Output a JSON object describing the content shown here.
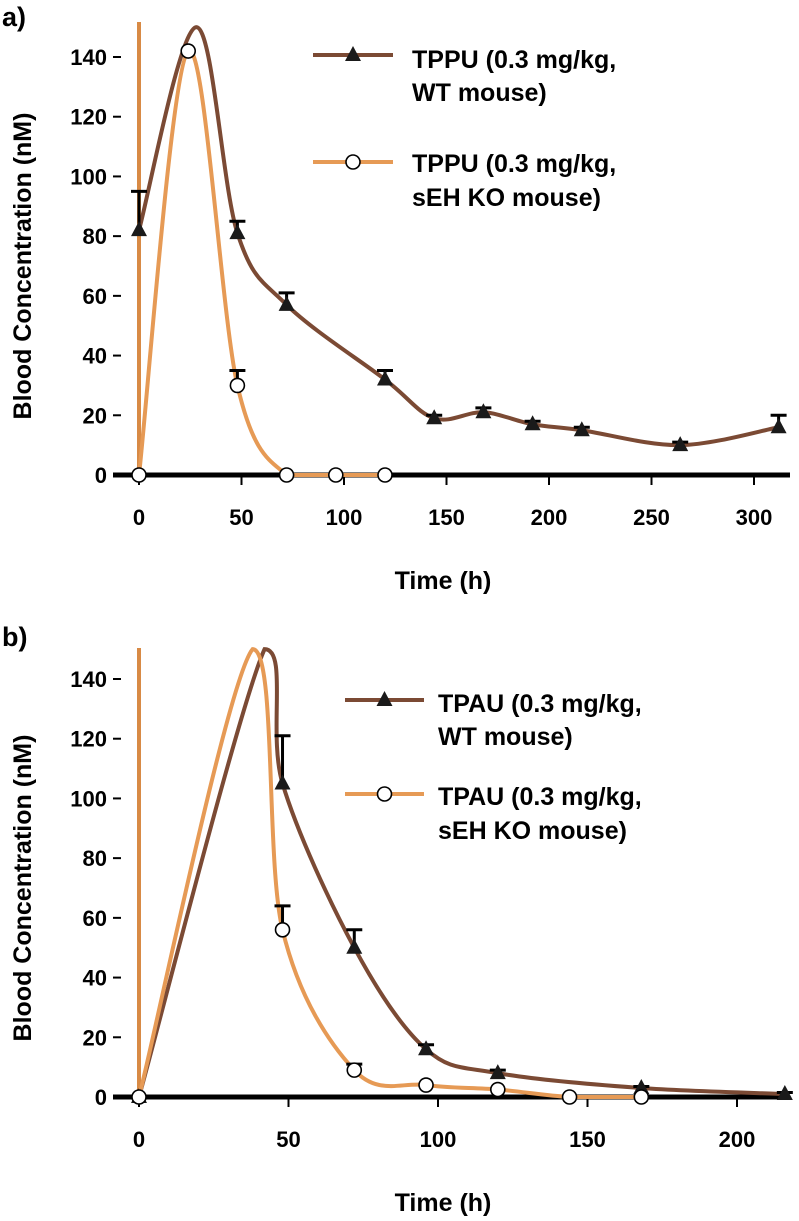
{
  "colors": {
    "wt": "#7b4a34",
    "ko": "#e69a55",
    "axis": "#000000",
    "zero": "#d88a45"
  },
  "chart_data": [
    {
      "panel_label": "a)",
      "type": "line",
      "xlabel": "Time (h)",
      "ylabel": "Blood Concentration (nM)",
      "xlim": [
        -3,
        318
      ],
      "ylim": [
        0,
        150
      ],
      "xticks": [
        0,
        50,
        100,
        150,
        200,
        250,
        300
      ],
      "yticks": [
        0,
        20,
        40,
        60,
        80,
        100,
        120,
        140
      ],
      "grid": false,
      "legend_position": "top-right",
      "series": [
        {
          "name": "TPPU (0.3 mg/kg,",
          "name2": "WT mouse)",
          "marker": "triangle",
          "x": [
            0,
            28,
            48,
            72,
            120,
            144,
            168,
            192,
            216,
            264,
            312
          ],
          "y": [
            82,
            150,
            81,
            57,
            32,
            19,
            21,
            17,
            15,
            10,
            16
          ],
          "err": [
            13,
            0,
            4,
            4,
            3,
            1,
            1.5,
            1,
            1,
            1,
            4
          ]
        },
        {
          "name": "TPPU (0.3 mg/kg,",
          "name2": "sEH KO mouse)",
          "marker": "circle",
          "x": [
            0,
            24,
            48,
            72,
            96,
            120
          ],
          "y": [
            0,
            142,
            30,
            0,
            0,
            0
          ],
          "err": [
            0,
            0,
            5,
            0,
            0,
            0
          ]
        }
      ]
    },
    {
      "panel_label": "b)",
      "type": "line",
      "xlabel": "Time (h)",
      "ylabel": "Blood Concentration (nM)",
      "xlim": [
        -3,
        222
      ],
      "ylim": [
        0,
        150
      ],
      "xticks": [
        0,
        50,
        100,
        150,
        200
      ],
      "yticks": [
        0,
        20,
        40,
        60,
        80,
        100,
        120,
        140
      ],
      "grid": false,
      "legend_position": "top-right",
      "series": [
        {
          "name": "TPAU (0.3 mg/kg,",
          "name2": "WT mouse)",
          "marker": "triangle",
          "x": [
            0,
            42,
            48,
            72,
            96,
            120,
            168,
            216
          ],
          "y": [
            0,
            150,
            105,
            50,
            16,
            8,
            3,
            1
          ],
          "err": [
            0,
            0,
            16,
            6,
            1.5,
            1,
            0.5,
            0.5
          ]
        },
        {
          "name": "TPAU (0.3 mg/kg,",
          "name2": "sEH KO mouse)",
          "marker": "circle",
          "x": [
            0,
            38,
            48,
            72,
            96,
            120,
            144,
            168
          ],
          "y": [
            0,
            150,
            56,
            9,
            4,
            2.5,
            0,
            0
          ],
          "err": [
            0,
            0,
            8,
            2,
            0,
            0,
            0,
            0
          ]
        }
      ]
    }
  ]
}
